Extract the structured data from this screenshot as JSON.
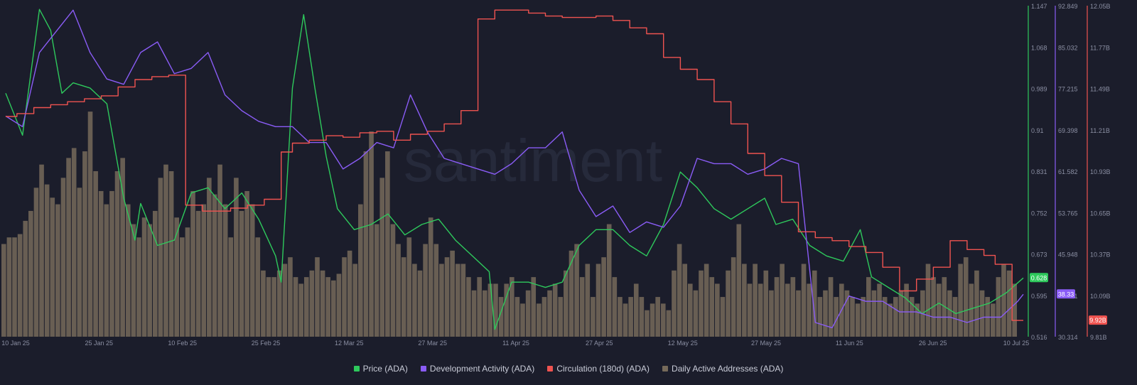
{
  "watermark": "santiment",
  "legend": [
    {
      "label": "Price (ADA)",
      "color": "#2ec95c"
    },
    {
      "label": "Development Activity (ADA)",
      "color": "#8a5cf6"
    },
    {
      "label": "Circulation (180d) (ADA)",
      "color": "#ef5350"
    },
    {
      "label": "Daily Active Addresses (ADA)",
      "color": "#766a5a"
    }
  ],
  "chart_data": {
    "type": "line",
    "x_ticks": [
      "10 Jan 25",
      "25 Jan 25",
      "10 Feb 25",
      "25 Feb 25",
      "12 Mar 25",
      "27 Mar 25",
      "11 Apr 25",
      "27 Apr 25",
      "12 May 25",
      "27 May 25",
      "11 Jun 25",
      "26 Jun 25",
      "10 Jul 25"
    ],
    "x_range": [
      "2025-01-10",
      "2025-07-10"
    ],
    "grid": false,
    "legend_position": "bottom",
    "axes": {
      "price": {
        "color": "#2ec95c",
        "ylim": [
          0.516,
          1.147
        ],
        "ticks": [
          "1.147",
          "1.068",
          "0.989",
          "0.91",
          "0.831",
          "0.752",
          "0.673",
          "0.595",
          "0.516"
        ],
        "last_label": "0.628"
      },
      "dev": {
        "color": "#8a5cf6",
        "ylim": [
          30.314,
          92.849
        ],
        "ticks": [
          "92.849",
          "85.032",
          "77.215",
          "69.398",
          "61.582",
          "53.765",
          "45.948",
          "38.131",
          "30.314"
        ],
        "last_label": "38.33"
      },
      "circ": {
        "color": "#ef5350",
        "ylim": [
          9.81,
          12.05
        ],
        "ticks": [
          "12.05B",
          "11.77B",
          "11.49B",
          "11.21B",
          "10.93B",
          "10.65B",
          "10.37B",
          "10.09B",
          "9.81B"
        ],
        "last_label": "9.92B"
      }
    },
    "series": [
      {
        "name": "Price (ADA)",
        "axis": "price",
        "color": "#2ec95c",
        "x": [
          "2025-01-10",
          "2025-01-13",
          "2025-01-16",
          "2025-01-18",
          "2025-01-20",
          "2025-01-22",
          "2025-01-25",
          "2025-01-28",
          "2025-01-31",
          "2025-02-02",
          "2025-02-03",
          "2025-02-06",
          "2025-02-09",
          "2025-02-12",
          "2025-02-15",
          "2025-02-18",
          "2025-02-21",
          "2025-02-24",
          "2025-02-27",
          "2025-02-28",
          "2025-03-02",
          "2025-03-04",
          "2025-03-06",
          "2025-03-08",
          "2025-03-10",
          "2025-03-13",
          "2025-03-16",
          "2025-03-19",
          "2025-03-22",
          "2025-03-25",
          "2025-03-28",
          "2025-03-31",
          "2025-04-03",
          "2025-04-06",
          "2025-04-07",
          "2025-04-10",
          "2025-04-13",
          "2025-04-16",
          "2025-04-19",
          "2025-04-22",
          "2025-04-25",
          "2025-04-28",
          "2025-05-01",
          "2025-05-04",
          "2025-05-07",
          "2025-05-10",
          "2025-05-13",
          "2025-05-16",
          "2025-05-19",
          "2025-05-22",
          "2025-05-25",
          "2025-05-27",
          "2025-05-30",
          "2025-06-02",
          "2025-06-05",
          "2025-06-08",
          "2025-06-11",
          "2025-06-13",
          "2025-06-16",
          "2025-06-19",
          "2025-06-22",
          "2025-06-25",
          "2025-06-28",
          "2025-07-01",
          "2025-07-04",
          "2025-07-07",
          "2025-07-10"
        ],
        "values": [
          0.98,
          0.9,
          1.14,
          1.1,
          0.98,
          1.0,
          0.99,
          0.96,
          0.78,
          0.7,
          0.77,
          0.69,
          0.7,
          0.79,
          0.8,
          0.76,
          0.79,
          0.74,
          0.67,
          0.62,
          0.99,
          1.13,
          0.99,
          0.86,
          0.76,
          0.72,
          0.73,
          0.75,
          0.71,
          0.73,
          0.74,
          0.7,
          0.67,
          0.64,
          0.53,
          0.62,
          0.62,
          0.61,
          0.62,
          0.69,
          0.72,
          0.72,
          0.69,
          0.67,
          0.73,
          0.83,
          0.8,
          0.76,
          0.74,
          0.76,
          0.78,
          0.73,
          0.74,
          0.69,
          0.67,
          0.66,
          0.72,
          0.63,
          0.61,
          0.59,
          0.56,
          0.58,
          0.56,
          0.57,
          0.58,
          0.6,
          0.628
        ]
      },
      {
        "name": "Development Activity (ADA)",
        "axis": "dev",
        "color": "#8a5cf6",
        "x": [
          "2025-01-10",
          "2025-01-13",
          "2025-01-16",
          "2025-01-19",
          "2025-01-22",
          "2025-01-25",
          "2025-01-28",
          "2025-01-31",
          "2025-02-03",
          "2025-02-06",
          "2025-02-09",
          "2025-02-12",
          "2025-02-15",
          "2025-02-18",
          "2025-02-21",
          "2025-02-24",
          "2025-02-27",
          "2025-03-02",
          "2025-03-05",
          "2025-03-08",
          "2025-03-11",
          "2025-03-14",
          "2025-03-17",
          "2025-03-20",
          "2025-03-23",
          "2025-03-26",
          "2025-03-29",
          "2025-04-01",
          "2025-04-04",
          "2025-04-07",
          "2025-04-10",
          "2025-04-13",
          "2025-04-16",
          "2025-04-19",
          "2025-04-22",
          "2025-04-25",
          "2025-04-28",
          "2025-05-01",
          "2025-05-04",
          "2025-05-07",
          "2025-05-10",
          "2025-05-13",
          "2025-05-16",
          "2025-05-19",
          "2025-05-22",
          "2025-05-25",
          "2025-05-28",
          "2025-05-31",
          "2025-06-03",
          "2025-06-06",
          "2025-06-09",
          "2025-06-12",
          "2025-06-15",
          "2025-06-18",
          "2025-06-21",
          "2025-06-24",
          "2025-06-27",
          "2025-06-30",
          "2025-07-03",
          "2025-07-06",
          "2025-07-09",
          "2025-07-10"
        ],
        "values": [
          72,
          70,
          84,
          88,
          92,
          84,
          79,
          78,
          84,
          86,
          80,
          81,
          84,
          76,
          73,
          71,
          70,
          70,
          67,
          67,
          62,
          64,
          67,
          66,
          76,
          69,
          64,
          63,
          62,
          61,
          63,
          66,
          66,
          69,
          58,
          53,
          55,
          50,
          52,
          51,
          55,
          64,
          63,
          63,
          61,
          62,
          64,
          63,
          33,
          32,
          38,
          37,
          37,
          35,
          35,
          34,
          34,
          33,
          34,
          34,
          37,
          38.33
        ]
      },
      {
        "name": "Circulation (180d) (ADA)",
        "axis": "circ",
        "color": "#ef5350",
        "x": [
          "2025-01-10",
          "2025-01-12",
          "2025-01-15",
          "2025-01-18",
          "2025-01-21",
          "2025-01-24",
          "2025-01-27",
          "2025-01-30",
          "2025-02-02",
          "2025-02-05",
          "2025-02-08",
          "2025-02-11",
          "2025-02-14",
          "2025-02-16",
          "2025-02-19",
          "2025-02-22",
          "2025-02-25",
          "2025-02-28",
          "2025-03-02",
          "2025-03-05",
          "2025-03-08",
          "2025-03-11",
          "2025-03-14",
          "2025-03-17",
          "2025-03-20",
          "2025-03-23",
          "2025-03-26",
          "2025-03-29",
          "2025-04-01",
          "2025-04-04",
          "2025-04-07",
          "2025-04-10",
          "2025-04-13",
          "2025-04-16",
          "2025-04-19",
          "2025-04-22",
          "2025-04-25",
          "2025-04-28",
          "2025-05-01",
          "2025-05-04",
          "2025-05-07",
          "2025-05-10",
          "2025-05-13",
          "2025-05-16",
          "2025-05-19",
          "2025-05-22",
          "2025-05-25",
          "2025-05-28",
          "2025-05-31",
          "2025-06-03",
          "2025-06-06",
          "2025-06-09",
          "2025-06-12",
          "2025-06-15",
          "2025-06-18",
          "2025-06-21",
          "2025-06-24",
          "2025-06-27",
          "2025-06-30",
          "2025-07-03",
          "2025-07-05",
          "2025-07-08",
          "2025-07-10"
        ],
        "values": [
          11.3,
          11.32,
          11.36,
          11.38,
          11.4,
          11.42,
          11.44,
          11.5,
          11.55,
          11.57,
          11.58,
          10.7,
          10.66,
          10.66,
          10.68,
          10.7,
          10.74,
          11.06,
          11.12,
          11.14,
          11.17,
          11.16,
          11.19,
          11.2,
          11.14,
          11.18,
          11.2,
          11.25,
          11.34,
          11.96,
          12.02,
          12.02,
          12.0,
          11.98,
          11.97,
          11.97,
          11.98,
          11.95,
          11.9,
          11.86,
          11.7,
          11.62,
          11.55,
          11.4,
          11.25,
          11.05,
          10.9,
          10.72,
          10.52,
          10.48,
          10.46,
          10.42,
          10.38,
          10.28,
          10.12,
          10.2,
          10.28,
          10.46,
          10.4,
          10.36,
          10.3,
          9.92,
          9.92
        ]
      }
    ],
    "bars": {
      "name": "Daily Active Addresses (ADA)",
      "color": "#766a5a",
      "values": [
        0.28,
        0.3,
        0.3,
        0.31,
        0.35,
        0.38,
        0.45,
        0.52,
        0.46,
        0.42,
        0.4,
        0.48,
        0.54,
        0.57,
        0.45,
        0.56,
        0.68,
        0.5,
        0.44,
        0.4,
        0.44,
        0.5,
        0.54,
        0.4,
        0.34,
        0.3,
        0.36,
        0.34,
        0.38,
        0.48,
        0.52,
        0.5,
        0.36,
        0.3,
        0.33,
        0.44,
        0.38,
        0.4,
        0.48,
        0.43,
        0.52,
        0.4,
        0.3,
        0.48,
        0.38,
        0.44,
        0.4,
        0.3,
        0.2,
        0.18,
        0.18,
        0.2,
        0.22,
        0.24,
        0.18,
        0.16,
        0.18,
        0.2,
        0.24,
        0.2,
        0.18,
        0.17,
        0.19,
        0.24,
        0.26,
        0.22,
        0.4,
        0.56,
        0.62,
        0.34,
        0.48,
        0.56,
        0.34,
        0.28,
        0.24,
        0.3,
        0.22,
        0.2,
        0.28,
        0.36,
        0.28,
        0.22,
        0.24,
        0.26,
        0.22,
        0.22,
        0.18,
        0.14,
        0.18,
        0.14,
        0.16,
        0.16,
        0.12,
        0.16,
        0.18,
        0.12,
        0.1,
        0.14,
        0.18,
        0.1,
        0.12,
        0.14,
        0.16,
        0.12,
        0.2,
        0.26,
        0.28,
        0.18,
        0.22,
        0.12,
        0.22,
        0.24,
        0.34,
        0.18,
        0.12,
        0.1,
        0.12,
        0.16,
        0.12,
        0.08,
        0.1,
        0.12,
        0.1,
        0.08,
        0.2,
        0.28,
        0.22,
        0.16,
        0.14,
        0.2,
        0.22,
        0.18,
        0.16,
        0.12,
        0.2,
        0.24,
        0.34,
        0.22,
        0.16,
        0.22,
        0.16,
        0.2,
        0.14,
        0.18,
        0.22,
        0.16,
        0.18,
        0.14,
        0.22,
        0.16,
        0.2,
        0.12,
        0.14,
        0.18,
        0.12,
        0.16,
        0.14,
        0.12,
        0.1,
        0.12,
        0.18,
        0.14,
        0.16,
        0.12,
        0.1,
        0.12,
        0.14,
        0.16,
        0.12,
        0.1,
        0.14,
        0.22,
        0.18,
        0.16,
        0.18,
        0.14,
        0.12,
        0.22,
        0.24,
        0.16,
        0.2,
        0.14,
        0.12,
        0.1,
        0.18,
        0.22,
        0.2,
        0.16
      ]
    }
  }
}
